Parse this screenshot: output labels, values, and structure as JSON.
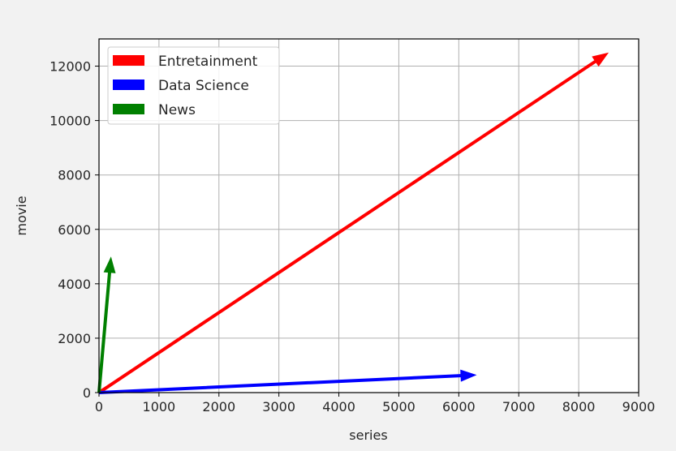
{
  "chart_data": {
    "type": "quiver",
    "xlabel": "series",
    "ylabel": "movie",
    "xlim": [
      0,
      9000
    ],
    "ylim": [
      0,
      13000
    ],
    "xticks": [
      0,
      1000,
      2000,
      3000,
      4000,
      5000,
      6000,
      7000,
      8000,
      9000
    ],
    "yticks": [
      0,
      2000,
      4000,
      6000,
      8000,
      10000,
      12000
    ],
    "grid": true,
    "legend_position": "upper-left",
    "series": [
      {
        "name": "Entretainment",
        "color": "#ff0000",
        "x0": 0,
        "y0": 0,
        "x1": 8500,
        "y1": 12500
      },
      {
        "name": "Data Science",
        "color": "#0000ff",
        "x0": 0,
        "y0": 0,
        "x1": 6300,
        "y1": 650
      },
      {
        "name": "News",
        "color": "#008000",
        "x0": 0,
        "y0": 0,
        "x1": 200,
        "y1": 5000
      }
    ]
  }
}
